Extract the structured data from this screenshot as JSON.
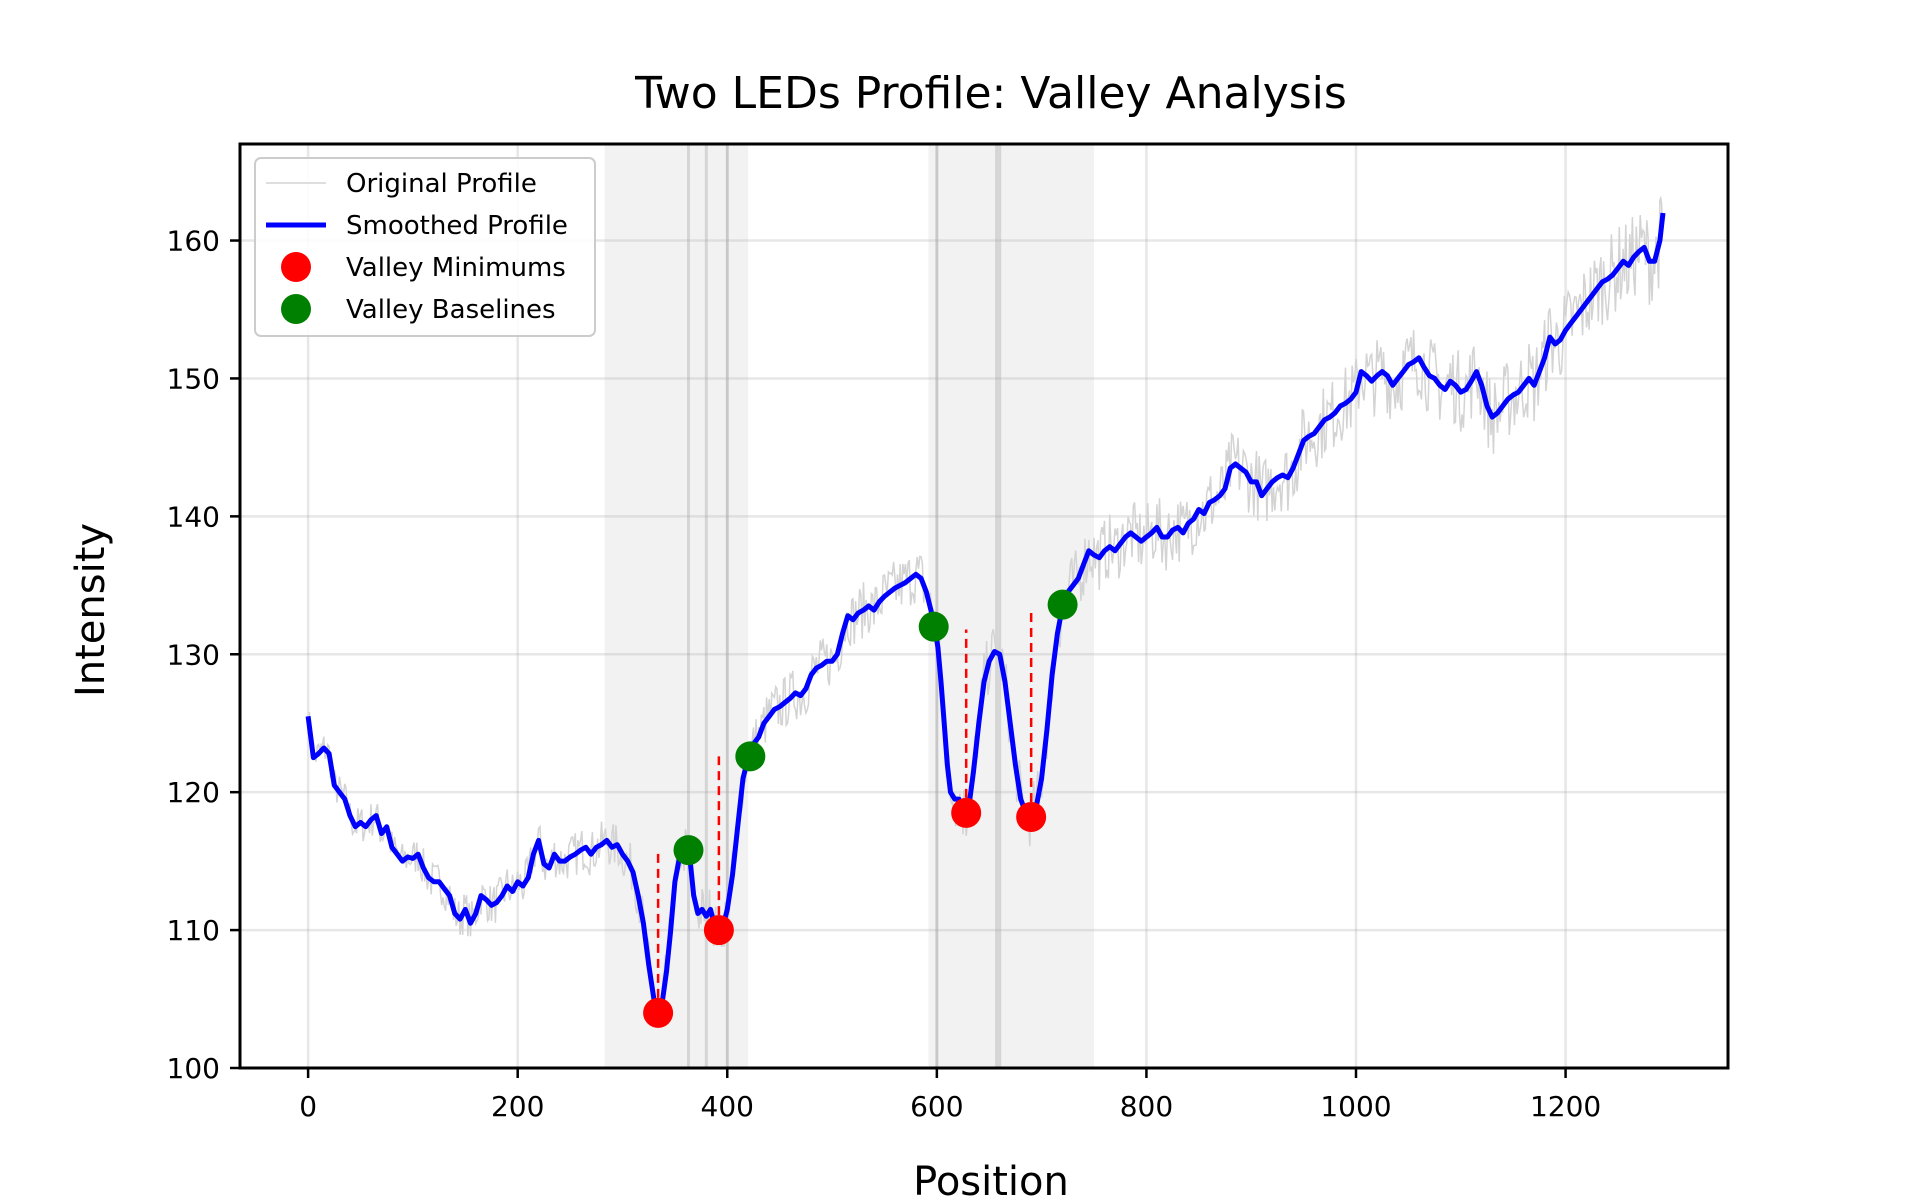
{
  "chart_data": {
    "type": "line",
    "title": "Two LEDs Profile: Valley Analysis",
    "xlabel": "Position",
    "ylabel": "Intensity",
    "xlim": [
      -65,
      1355
    ],
    "ylim": [
      100,
      167
    ],
    "x_ticks": [
      0,
      200,
      400,
      600,
      800,
      1000,
      1200
    ],
    "y_ticks": [
      100,
      110,
      120,
      130,
      140,
      150,
      160
    ],
    "grid": true,
    "legend": {
      "placement": "top-left",
      "entries": [
        {
          "label": "Original Profile",
          "kind": "line",
          "color": "#d3d3d3"
        },
        {
          "label": "Smoothed Profile",
          "kind": "line",
          "color": "#0000ff"
        },
        {
          "label": "Valley Minimums",
          "kind": "marker",
          "color": "#ff0000"
        },
        {
          "label": "Valley Baselines",
          "kind": "marker",
          "color": "#008000"
        }
      ]
    },
    "shaded_regions": [
      [
        283,
        420
      ],
      [
        592,
        750
      ]
    ],
    "vertical_lines": [
      363,
      380,
      400,
      600,
      657,
      660
    ],
    "series": [
      {
        "name": "Smoothed Profile",
        "color": "#0000ff",
        "points": [
          [
            0,
            125.5
          ],
          [
            5,
            122.5
          ],
          [
            10,
            122.8
          ],
          [
            15,
            123.2
          ],
          [
            20,
            122.8
          ],
          [
            25,
            120.5
          ],
          [
            30,
            120
          ],
          [
            35,
            119.5
          ],
          [
            40,
            118.3
          ],
          [
            45,
            117.5
          ],
          [
            50,
            117.8
          ],
          [
            55,
            117.5
          ],
          [
            60,
            118
          ],
          [
            65,
            118.3
          ],
          [
            70,
            117
          ],
          [
            75,
            117.5
          ],
          [
            80,
            116
          ],
          [
            85,
            115.5
          ],
          [
            90,
            115
          ],
          [
            95,
            115.3
          ],
          [
            100,
            115.2
          ],
          [
            105,
            115.5
          ],
          [
            110,
            114.5
          ],
          [
            115,
            113.8
          ],
          [
            120,
            113.5
          ],
          [
            125,
            113.5
          ],
          [
            130,
            113
          ],
          [
            135,
            112.5
          ],
          [
            140,
            111.2
          ],
          [
            145,
            110.8
          ],
          [
            150,
            111.5
          ],
          [
            155,
            110.5
          ],
          [
            160,
            111.2
          ],
          [
            165,
            112.5
          ],
          [
            170,
            112.2
          ],
          [
            175,
            111.8
          ],
          [
            180,
            112
          ],
          [
            185,
            112.5
          ],
          [
            190,
            113.2
          ],
          [
            195,
            112.8
          ],
          [
            200,
            113.5
          ],
          [
            205,
            113.2
          ],
          [
            210,
            113.8
          ],
          [
            215,
            115.5
          ],
          [
            220,
            116.5
          ],
          [
            225,
            114.8
          ],
          [
            230,
            114.5
          ],
          [
            235,
            115.5
          ],
          [
            240,
            115
          ],
          [
            245,
            115
          ],
          [
            250,
            115.3
          ],
          [
            255,
            115.5
          ],
          [
            260,
            115.8
          ],
          [
            265,
            116
          ],
          [
            270,
            115.5
          ],
          [
            275,
            116
          ],
          [
            280,
            116.2
          ],
          [
            285,
            116.5
          ],
          [
            290,
            116
          ],
          [
            295,
            116.2
          ],
          [
            300,
            115.5
          ],
          [
            305,
            115
          ],
          [
            310,
            114.2
          ],
          [
            315,
            112.5
          ],
          [
            320,
            110.5
          ],
          [
            325,
            107.5
          ],
          [
            330,
            105
          ],
          [
            334,
            104
          ],
          [
            338,
            104.8
          ],
          [
            342,
            107
          ],
          [
            346,
            110
          ],
          [
            350,
            113.5
          ],
          [
            355,
            115.5
          ],
          [
            360,
            115.8
          ],
          [
            364,
            115.5
          ],
          [
            368,
            112.5
          ],
          [
            372,
            111.2
          ],
          [
            376,
            111.5
          ],
          [
            380,
            111
          ],
          [
            384,
            111.5
          ],
          [
            388,
            110.3
          ],
          [
            392,
            110
          ],
          [
            396,
            110.3
          ],
          [
            400,
            111.5
          ],
          [
            405,
            114
          ],
          [
            410,
            117.5
          ],
          [
            415,
            121
          ],
          [
            420,
            122.5
          ],
          [
            425,
            123.5
          ],
          [
            430,
            124
          ],
          [
            435,
            125
          ],
          [
            440,
            125.5
          ],
          [
            445,
            126
          ],
          [
            450,
            126.2
          ],
          [
            455,
            126.5
          ],
          [
            460,
            126.8
          ],
          [
            465,
            127.2
          ],
          [
            470,
            127
          ],
          [
            475,
            127.5
          ],
          [
            480,
            128.5
          ],
          [
            485,
            129
          ],
          [
            490,
            129.2
          ],
          [
            495,
            129.5
          ],
          [
            500,
            129.5
          ],
          [
            505,
            130
          ],
          [
            510,
            131.5
          ],
          [
            515,
            132.8
          ],
          [
            520,
            132.5
          ],
          [
            525,
            133
          ],
          [
            530,
            133.2
          ],
          [
            535,
            133.5
          ],
          [
            540,
            133.2
          ],
          [
            545,
            133.8
          ],
          [
            550,
            134.2
          ],
          [
            555,
            134.5
          ],
          [
            560,
            134.8
          ],
          [
            565,
            135
          ],
          [
            570,
            135.2
          ],
          [
            575,
            135.5
          ],
          [
            580,
            135.8
          ],
          [
            585,
            135.5
          ],
          [
            590,
            134.5
          ],
          [
            595,
            133
          ],
          [
            598,
            132
          ],
          [
            601,
            130.5
          ],
          [
            604,
            128
          ],
          [
            607,
            125
          ],
          [
            610,
            122
          ],
          [
            613,
            120
          ],
          [
            617,
            119.5
          ],
          [
            621,
            119.5
          ],
          [
            625,
            118.7
          ],
          [
            628,
            118.5
          ],
          [
            631,
            119.2
          ],
          [
            635,
            121.5
          ],
          [
            640,
            125
          ],
          [
            645,
            128
          ],
          [
            650,
            129.5
          ],
          [
            655,
            130.2
          ],
          [
            660,
            130
          ],
          [
            665,
            128
          ],
          [
            670,
            125
          ],
          [
            675,
            122
          ],
          [
            680,
            119.5
          ],
          [
            685,
            118.5
          ],
          [
            690,
            118.2
          ],
          [
            695,
            119
          ],
          [
            700,
            121
          ],
          [
            705,
            124.5
          ],
          [
            710,
            128.5
          ],
          [
            715,
            131.5
          ],
          [
            720,
            133.5
          ],
          [
            725,
            134.5
          ],
          [
            730,
            135
          ],
          [
            735,
            135.5
          ],
          [
            740,
            136.5
          ],
          [
            745,
            137.5
          ],
          [
            750,
            137.2
          ],
          [
            755,
            137
          ],
          [
            760,
            137.5
          ],
          [
            765,
            137.8
          ],
          [
            770,
            137.5
          ],
          [
            775,
            138
          ],
          [
            780,
            138.5
          ],
          [
            785,
            138.8
          ],
          [
            790,
            138.5
          ],
          [
            795,
            138.2
          ],
          [
            800,
            138.5
          ],
          [
            805,
            138.8
          ],
          [
            810,
            139.2
          ],
          [
            815,
            138.5
          ],
          [
            820,
            138.5
          ],
          [
            825,
            139
          ],
          [
            830,
            139.2
          ],
          [
            835,
            138.8
          ],
          [
            840,
            139.5
          ],
          [
            845,
            139.8
          ],
          [
            850,
            140.5
          ],
          [
            855,
            140.2
          ],
          [
            860,
            141
          ],
          [
            865,
            141.2
          ],
          [
            870,
            141.5
          ],
          [
            875,
            142
          ],
          [
            880,
            143.5
          ],
          [
            885,
            143.8
          ],
          [
            890,
            143.5
          ],
          [
            895,
            143.2
          ],
          [
            900,
            142.5
          ],
          [
            905,
            142.5
          ],
          [
            910,
            141.5
          ],
          [
            915,
            142
          ],
          [
            920,
            142.5
          ],
          [
            925,
            142.8
          ],
          [
            930,
            143
          ],
          [
            935,
            142.8
          ],
          [
            940,
            143.5
          ],
          [
            945,
            144.5
          ],
          [
            950,
            145.5
          ],
          [
            955,
            145.8
          ],
          [
            960,
            146
          ],
          [
            965,
            146.5
          ],
          [
            970,
            147
          ],
          [
            975,
            147.2
          ],
          [
            980,
            147.5
          ],
          [
            985,
            148
          ],
          [
            990,
            148.2
          ],
          [
            995,
            148.5
          ],
          [
            1000,
            149
          ],
          [
            1005,
            150.5
          ],
          [
            1010,
            150.2
          ],
          [
            1015,
            149.8
          ],
          [
            1020,
            150.2
          ],
          [
            1025,
            150.5
          ],
          [
            1030,
            150.2
          ],
          [
            1035,
            149.5
          ],
          [
            1040,
            150
          ],
          [
            1045,
            150.5
          ],
          [
            1050,
            151
          ],
          [
            1055,
            151.2
          ],
          [
            1060,
            151.5
          ],
          [
            1065,
            150.8
          ],
          [
            1070,
            150.2
          ],
          [
            1075,
            150
          ],
          [
            1080,
            149.5
          ],
          [
            1085,
            149.2
          ],
          [
            1090,
            149.8
          ],
          [
            1095,
            149.5
          ],
          [
            1100,
            149
          ],
          [
            1105,
            149.2
          ],
          [
            1110,
            149.8
          ],
          [
            1115,
            150.5
          ],
          [
            1120,
            149.5
          ],
          [
            1125,
            148
          ],
          [
            1130,
            147.2
          ],
          [
            1135,
            147.5
          ],
          [
            1140,
            148
          ],
          [
            1145,
            148.5
          ],
          [
            1150,
            148.8
          ],
          [
            1155,
            149
          ],
          [
            1160,
            149.5
          ],
          [
            1165,
            150
          ],
          [
            1170,
            149.5
          ],
          [
            1175,
            150.5
          ],
          [
            1180,
            151.5
          ],
          [
            1185,
            153
          ],
          [
            1190,
            152.5
          ],
          [
            1195,
            152.8
          ],
          [
            1200,
            153.5
          ],
          [
            1205,
            154
          ],
          [
            1210,
            154.5
          ],
          [
            1215,
            155
          ],
          [
            1220,
            155.5
          ],
          [
            1225,
            156
          ],
          [
            1230,
            156.5
          ],
          [
            1235,
            157
          ],
          [
            1240,
            157.2
          ],
          [
            1245,
            157.5
          ],
          [
            1250,
            158
          ],
          [
            1255,
            158.5
          ],
          [
            1260,
            158.2
          ],
          [
            1265,
            158.8
          ],
          [
            1270,
            159.2
          ],
          [
            1275,
            159.5
          ],
          [
            1280,
            158.5
          ],
          [
            1285,
            158.5
          ],
          [
            1290,
            160
          ],
          [
            1293,
            162
          ]
        ]
      }
    ],
    "valley_minimums": [
      [
        334,
        104
      ],
      [
        392,
        110
      ],
      [
        628,
        118.5
      ],
      [
        690,
        118.2
      ]
    ],
    "valley_baselines": [
      [
        363,
        115.8
      ],
      [
        422,
        122.6
      ],
      [
        597,
        132
      ],
      [
        720,
        133.6
      ]
    ],
    "minimum_dashes": [
      [
        334,
        104,
        115.8
      ],
      [
        392,
        110,
        122.6
      ],
      [
        628,
        118.5,
        131.8
      ],
      [
        690,
        118.2,
        133.2
      ]
    ]
  }
}
